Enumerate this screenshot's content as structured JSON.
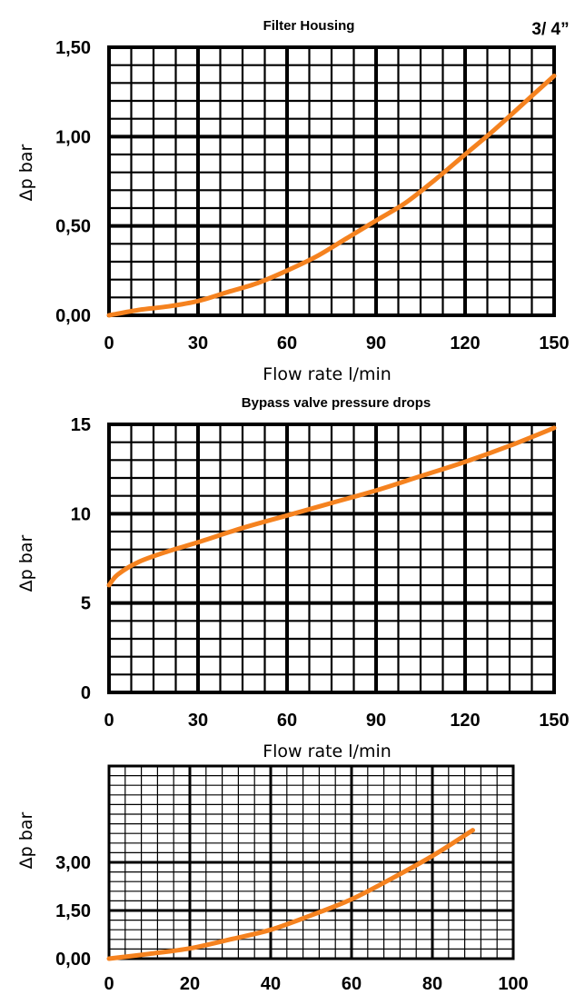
{
  "chart_data": [
    {
      "type": "line",
      "title": "Filter Housing",
      "size_label": "3/ 4”",
      "xlabel": "Flow rate l/min",
      "ylabel": "Δp bar",
      "xlim": [
        0,
        150
      ],
      "ylim": [
        0,
        1.5
      ],
      "x_ticks": [
        "0",
        "30",
        "60",
        "90",
        "120",
        "150"
      ],
      "y_ticks": [
        "0,00",
        "0,50",
        "1,00",
        "1,50"
      ],
      "grid": true,
      "line_color": "#f5821f",
      "series": [
        {
          "x": [
            0,
            10,
            20,
            30,
            40,
            50,
            60,
            70,
            80,
            90,
            100,
            110,
            120,
            130,
            140,
            150
          ],
          "y": [
            0,
            0.03,
            0.05,
            0.08,
            0.13,
            0.18,
            0.25,
            0.33,
            0.43,
            0.53,
            0.63,
            0.76,
            0.9,
            1.04,
            1.19,
            1.34
          ]
        }
      ]
    },
    {
      "type": "line",
      "title": "Bypass valve pressure drops",
      "xlabel": "Flow rate l/min",
      "ylabel": "Δp bar",
      "xlim": [
        0,
        150
      ],
      "ylim": [
        0,
        15
      ],
      "x_ticks": [
        "0",
        "30",
        "60",
        "90",
        "120",
        "150"
      ],
      "y_ticks": [
        "0",
        "5",
        "10",
        "15"
      ],
      "grid": true,
      "line_color": "#f5821f",
      "series": [
        {
          "x": [
            0,
            3,
            10,
            20,
            30,
            45,
            60,
            75,
            90,
            105,
            120,
            135,
            150
          ],
          "y": [
            6.0,
            6.6,
            7.3,
            7.9,
            8.4,
            9.2,
            9.9,
            10.6,
            11.3,
            12.1,
            12.9,
            13.8,
            14.8
          ]
        }
      ]
    },
    {
      "type": "line",
      "title": "",
      "xlabel": "",
      "ylabel": "Δp bar",
      "xlim": [
        0,
        100
      ],
      "ylim": [
        0,
        6
      ],
      "x_ticks": [
        "0",
        "20",
        "40",
        "60",
        "80",
        "100"
      ],
      "y_ticks": [
        "0,00",
        "1,50",
        "3,00"
      ],
      "grid": true,
      "line_color": "#f5821f",
      "series": [
        {
          "x": [
            0,
            10,
            20,
            30,
            40,
            50,
            60,
            70,
            80,
            90
          ],
          "y": [
            0,
            0.15,
            0.32,
            0.6,
            0.9,
            1.35,
            1.85,
            2.5,
            3.2,
            4.0
          ]
        }
      ]
    }
  ]
}
